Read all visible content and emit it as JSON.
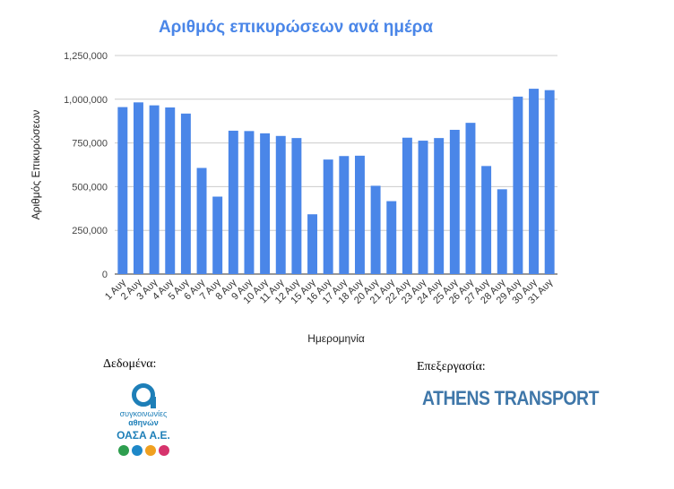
{
  "chart_data": {
    "type": "bar",
    "title": "Αριθμός επικυρώσεων ανά ημέρα",
    "xlabel": "Ημερομηνία",
    "ylabel": "Αριθμός Επικυρώσεων",
    "ylim": [
      0,
      1250000
    ],
    "yticks": [
      "0",
      "250,000",
      "500,000",
      "750,000",
      "1,000,000",
      "1,250,000"
    ],
    "grid": true,
    "color": "#4a86e8",
    "categories": [
      "1 Αυγ",
      "2 Αυγ",
      "3 Αυγ",
      "4 Αυγ",
      "5 Αυγ",
      "6 Αυγ",
      "7 Αυγ",
      "8 Αυγ",
      "9 Αυγ",
      "10 Αυγ",
      "11 Αυγ",
      "12 Αυγ",
      "15 Αυγ",
      "16 Αυγ",
      "17 Αυγ",
      "18 Αυγ",
      "20 Αυγ",
      "21 Αυγ",
      "22 Αυγ",
      "23 Αυγ",
      "24 Αυγ",
      "25 Αυγ",
      "26 Αυγ",
      "27 Αυγ",
      "28 Αυγ",
      "29 Αυγ",
      "30 Αυγ",
      "31 Αυγ"
    ],
    "values": [
      955000,
      982000,
      965000,
      953000,
      918000,
      607000,
      443000,
      820000,
      818000,
      805000,
      790000,
      778000,
      342000,
      655000,
      675000,
      677000,
      505000,
      417000,
      780000,
      763000,
      778000,
      825000,
      865000,
      618000,
      485000,
      1015000,
      1060000,
      1052000
    ]
  },
  "footer": {
    "data_label": "Δεδομένα:",
    "processing_label": "Επεξεργασία:",
    "oasa_line1": "συγκοινωνίες",
    "oasa_line2": "αθηνών",
    "oasa_line3": "ΟΑΣΑ Α.Ε.",
    "athens_transport": "ATHENS TRANSPORT",
    "mode_colors": [
      "#2e9e4f",
      "#1e88c8",
      "#f0a020",
      "#d6336c"
    ]
  }
}
